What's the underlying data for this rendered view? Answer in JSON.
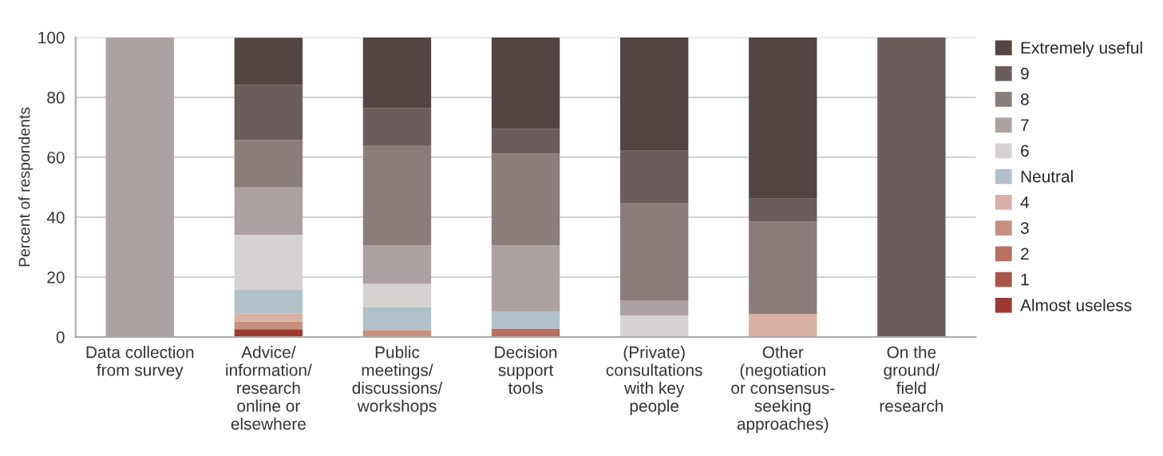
{
  "chart_data": {
    "type": "bar",
    "stacked": true,
    "ylabel": "Percent of respondents",
    "categories": [
      "Data collection\nfrom survey",
      "Advice/\ninformation/\nresearch\nonline or\nelsewhere",
      "Public\nmeetings/\ndiscussions/\nworkshops",
      "Decision\nsupport\ntools",
      "(Private)\nconsultations\nwith key\npeople",
      "Other\n(negotiation\nor consensus-\nseeking\napproaches)",
      "On the\nground/\nfield\nresearch"
    ],
    "series": [
      {
        "name": "Almost useless",
        "color": "#9c3a2f",
        "values": [
          0,
          2.6,
          0,
          0,
          0,
          0,
          0
        ]
      },
      {
        "name": "1",
        "color": "#a85647",
        "values": [
          0,
          0,
          0,
          0,
          0,
          0,
          0
        ]
      },
      {
        "name": "2",
        "color": "#b87060",
        "values": [
          0,
          0,
          0,
          2.8,
          0,
          0,
          0
        ]
      },
      {
        "name": "3",
        "color": "#c88f7e",
        "values": [
          0,
          2.6,
          2.3,
          0,
          0,
          0,
          0
        ]
      },
      {
        "name": "4",
        "color": "#d8b1a4",
        "values": [
          0,
          2.6,
          0,
          0,
          0,
          7.7,
          0
        ]
      },
      {
        "name": "Neutral",
        "color": "#b2c0c8",
        "values": [
          0,
          7.9,
          7.7,
          5.6,
          0,
          0,
          0
        ]
      },
      {
        "name": "6",
        "color": "#d6d2d2",
        "values": [
          0,
          18.4,
          7.7,
          0,
          7.2,
          0,
          0
        ]
      },
      {
        "name": "7",
        "color": "#aca2a1",
        "values": [
          100,
          15.8,
          12.8,
          22.2,
          4.9,
          0,
          0
        ]
      },
      {
        "name": "8",
        "color": "#8a7e7a",
        "values": [
          0,
          15.8,
          33.3,
          30.6,
          32.7,
          30.8,
          0
        ]
      },
      {
        "name": "9",
        "color": "#6b5d5b",
        "values": [
          0,
          18.4,
          12.6,
          8.3,
          17.4,
          7.7,
          100
        ]
      },
      {
        "name": "Extremely useful",
        "color": "#524542",
        "values": [
          0,
          15.8,
          23.6,
          30.5,
          37.8,
          53.8,
          0
        ]
      }
    ],
    "ylim": [
      0,
      100
    ],
    "yticks": [
      0,
      20,
      40,
      60,
      80,
      100
    ],
    "grid": "y",
    "legend": "right"
  }
}
